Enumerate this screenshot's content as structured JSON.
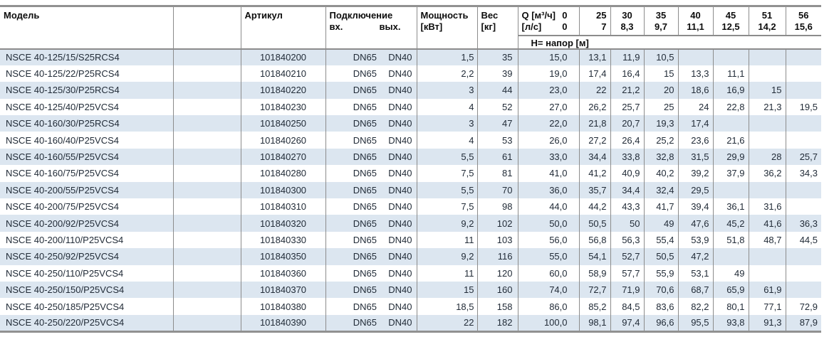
{
  "header": {
    "model": "Модель",
    "article": "Артикул",
    "connection": "Подключение",
    "inlet": "вх.",
    "outlet": "вых.",
    "power_l1": "Мощность",
    "power_l2": "[кВт]",
    "weight_l1": "Вес",
    "weight_l2": "[кг]",
    "q_m3h_label": "Q [м³/ч]",
    "q_m3h_zero": "0",
    "q_ls_label": "[л/с]",
    "q_ls_zero": "0",
    "head_label": "Н= напор [м]",
    "flow_columns": [
      {
        "m3h": "25",
        "ls": "7"
      },
      {
        "m3h": "30",
        "ls": "8,3"
      },
      {
        "m3h": "35",
        "ls": "9,7"
      },
      {
        "m3h": "40",
        "ls": "11,1"
      },
      {
        "m3h": "45",
        "ls": "12,5"
      },
      {
        "m3h": "51",
        "ls": "14,2"
      },
      {
        "m3h": "56",
        "ls": "15,6"
      }
    ]
  },
  "colors": {
    "stripe": "#dce6f0",
    "border": "#8c8c8c",
    "text": "#222c38"
  },
  "rows": [
    {
      "model": "NSCE 40-125/15/S25RCS4",
      "article": "101840200",
      "inlet": "DN65",
      "outlet": "DN40",
      "power": "1,5",
      "weight": "35",
      "head": [
        "15,0",
        "13,1",
        "11,9",
        "10,5",
        "",
        "",
        "",
        ""
      ]
    },
    {
      "model": "NSCE 40-125/22/P25RCS4",
      "article": "101840210",
      "inlet": "DN65",
      "outlet": "DN40",
      "power": "2,2",
      "weight": "39",
      "head": [
        "19,0",
        "17,4",
        "16,4",
        "15",
        "13,3",
        "11,1",
        "",
        ""
      ]
    },
    {
      "model": "NSCE 40-125/30/P25RCS4",
      "article": "101840220",
      "inlet": "DN65",
      "outlet": "DN40",
      "power": "3",
      "weight": "44",
      "head": [
        "23,0",
        "22",
        "21,2",
        "20",
        "18,6",
        "16,9",
        "15",
        ""
      ]
    },
    {
      "model": "NSCE 40-125/40/P25VCS4",
      "article": "101840230",
      "inlet": "DN65",
      "outlet": "DN40",
      "power": "4",
      "weight": "52",
      "head": [
        "27,0",
        "26,2",
        "25,7",
        "25",
        "24",
        "22,8",
        "21,3",
        "19,5"
      ]
    },
    {
      "model": "NSCE 40-160/30/P25RCS4",
      "article": "101840250",
      "inlet": "DN65",
      "outlet": "DN40",
      "power": "3",
      "weight": "47",
      "head": [
        "22,0",
        "21,8",
        "20,7",
        "19,3",
        "17,4",
        "",
        "",
        ""
      ]
    },
    {
      "model": "NSCE 40-160/40/P25VCS4",
      "article": "101840260",
      "inlet": "DN65",
      "outlet": "DN40",
      "power": "4",
      "weight": "53",
      "head": [
        "26,0",
        "27,2",
        "26,4",
        "25,2",
        "23,6",
        "21,6",
        "",
        ""
      ]
    },
    {
      "model": "NSCE 40-160/55/P25VCS4",
      "article": "101840270",
      "inlet": "DN65",
      "outlet": "DN40",
      "power": "5,5",
      "weight": "61",
      "head": [
        "33,0",
        "34,4",
        "33,8",
        "32,8",
        "31,5",
        "29,9",
        "28",
        "25,7"
      ]
    },
    {
      "model": "NSCE 40-160/75/P25VCS4",
      "article": "101840280",
      "inlet": "DN65",
      "outlet": "DN40",
      "power": "7,5",
      "weight": "81",
      "head": [
        "41,0",
        "41,2",
        "40,9",
        "40,2",
        "39,2",
        "37,9",
        "36,2",
        "34,3"
      ]
    },
    {
      "model": "NSCE 40-200/55/P25VCS4",
      "article": "101840300",
      "inlet": "DN65",
      "outlet": "DN40",
      "power": "5,5",
      "weight": "70",
      "head": [
        "36,0",
        "35,7",
        "34,4",
        "32,4",
        "29,5",
        "",
        "",
        ""
      ]
    },
    {
      "model": "NSCE 40-200/75/P25VCS4",
      "article": "101840310",
      "inlet": "DN65",
      "outlet": "DN40",
      "power": "7,5",
      "weight": "98",
      "head": [
        "44,0",
        "44,2",
        "43,3",
        "41,7",
        "39,4",
        "36,1",
        "31,6",
        ""
      ]
    },
    {
      "model": "NSCE 40-200/92/P25VCS4",
      "article": "101840320",
      "inlet": "DN65",
      "outlet": "DN40",
      "power": "9,2",
      "weight": "102",
      "head": [
        "50,0",
        "50,5",
        "50",
        "49",
        "47,6",
        "45,2",
        "41,6",
        "36,3"
      ]
    },
    {
      "model": "NSCE 40-200/110/P25VCS4",
      "article": "101840330",
      "inlet": "DN65",
      "outlet": "DN40",
      "power": "11",
      "weight": "103",
      "head": [
        "56,0",
        "56,8",
        "56,3",
        "55,4",
        "53,9",
        "51,8",
        "48,7",
        "44,5"
      ]
    },
    {
      "model": "NSCE 40-250/92/P25VCS4",
      "article": "101840350",
      "inlet": "DN65",
      "outlet": "DN40",
      "power": "9,2",
      "weight": "116",
      "head": [
        "55,0",
        "54,1",
        "52,7",
        "50,5",
        "47,2",
        "",
        "",
        ""
      ]
    },
    {
      "model": "NSCE 40-250/110/P25VCS4",
      "article": "101840360",
      "inlet": "DN65",
      "outlet": "DN40",
      "power": "11",
      "weight": "120",
      "head": [
        "60,0",
        "58,9",
        "57,7",
        "55,9",
        "53,1",
        "49",
        "",
        ""
      ]
    },
    {
      "model": "NSCE 40-250/150/P25VCS4",
      "article": "101840370",
      "inlet": "DN65",
      "outlet": "DN40",
      "power": "15",
      "weight": "160",
      "head": [
        "74,0",
        "72,7",
        "71,9",
        "70,6",
        "68,7",
        "65,9",
        "61,9",
        ""
      ]
    },
    {
      "model": "NSCE 40-250/185/P25VCS4",
      "article": "101840380",
      "inlet": "DN65",
      "outlet": "DN40",
      "power": "18,5",
      "weight": "158",
      "head": [
        "86,0",
        "85,2",
        "84,5",
        "83,6",
        "82,2",
        "80,1",
        "77,1",
        "72,9"
      ]
    },
    {
      "model": "NSCE 40-250/220/P25VCS4",
      "article": "101840390",
      "inlet": "DN65",
      "outlet": "DN40",
      "power": "22",
      "weight": "182",
      "head": [
        "100,0",
        "98,1",
        "97,4",
        "96,6",
        "95,5",
        "93,8",
        "91,3",
        "87,9"
      ]
    }
  ]
}
